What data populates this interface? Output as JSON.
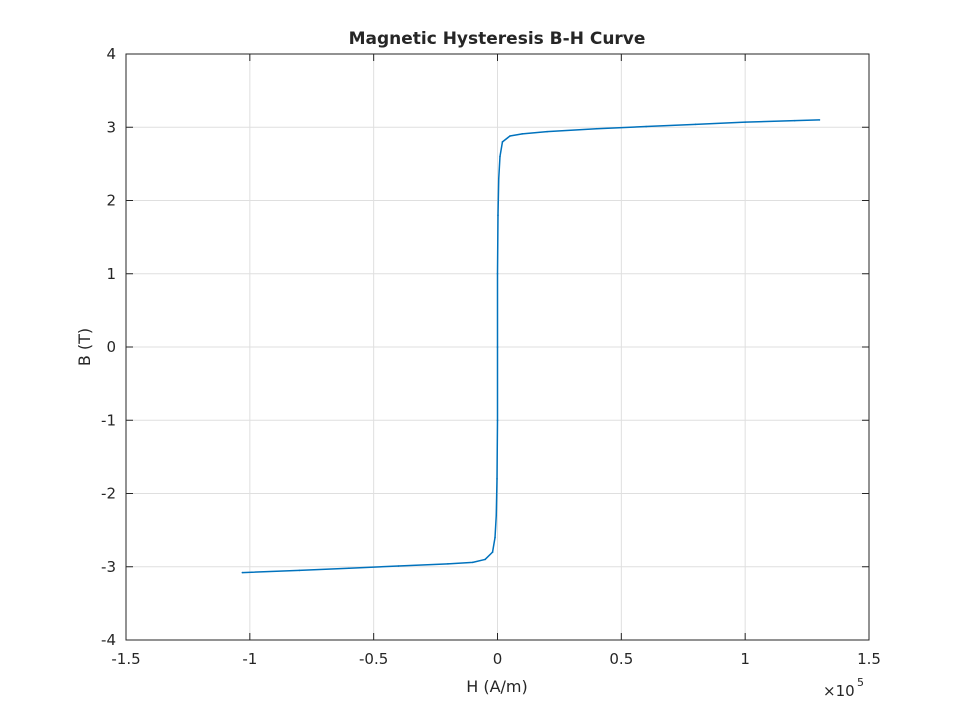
{
  "chart_data": {
    "type": "line",
    "title": "Magnetic Hysteresis B-H Curve",
    "xlabel": "H (A/m)",
    "ylabel": "B (T)",
    "x_exponent_label": "×10",
    "x_exponent_power": "5",
    "x_scale_factor": 100000,
    "xlim": [
      -1.5,
      1.5
    ],
    "ylim": [
      -4,
      4
    ],
    "x_ticks": [
      -1.5,
      -1,
      -0.5,
      0,
      0.5,
      1,
      1.5
    ],
    "x_tick_labels": [
      "-1.5",
      "-1",
      "-0.5",
      "0",
      "0.5",
      "1",
      "1.5"
    ],
    "y_ticks": [
      -4,
      -3,
      -2,
      -1,
      0,
      1,
      2,
      3,
      4
    ],
    "y_tick_labels": [
      "-4",
      "-3",
      "-2",
      "-1",
      "0",
      "1",
      "2",
      "3",
      "4"
    ],
    "grid": true,
    "series": [
      {
        "color": "#0072bd",
        "x": [
          -1.03,
          -0.8,
          -0.6,
          -0.4,
          -0.2,
          -0.1,
          -0.05,
          -0.02,
          -0.01,
          -0.005,
          -0.002,
          0.0,
          0.0,
          0.0,
          0.002,
          0.005,
          0.01,
          0.02,
          0.05,
          0.1,
          0.2,
          0.4,
          0.6,
          0.8,
          1.0,
          1.2,
          1.3
        ],
        "y": [
          -3.08,
          -3.05,
          -3.02,
          -2.99,
          -2.96,
          -2.94,
          -2.9,
          -2.8,
          -2.6,
          -2.3,
          -1.8,
          -1.0,
          0.0,
          1.0,
          1.8,
          2.3,
          2.6,
          2.8,
          2.88,
          2.91,
          2.94,
          2.98,
          3.01,
          3.04,
          3.07,
          3.09,
          3.1
        ]
      }
    ]
  }
}
